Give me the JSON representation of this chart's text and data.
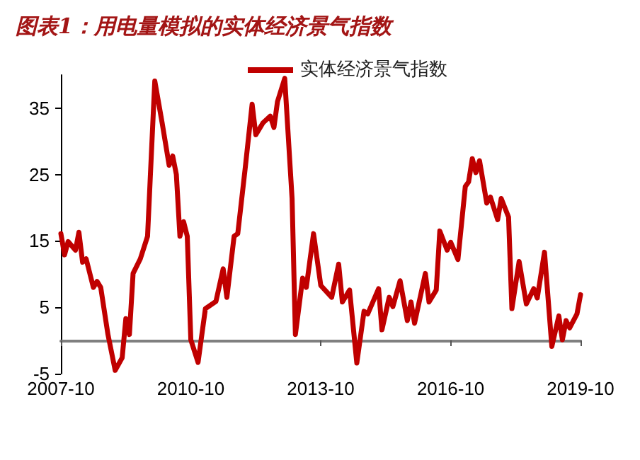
{
  "chart_data": {
    "type": "line",
    "title": "图表1：用电量模拟的实体经济景气指数",
    "x": [
      "2007-10",
      "2007-11",
      "2007-12",
      "2008-02",
      "2008-03",
      "2008-04",
      "2008-05",
      "2008-07",
      "2008-08",
      "2008-09",
      "2008-11",
      "2009-01",
      "2009-03",
      "2009-04",
      "2009-05",
      "2009-06",
      "2009-08",
      "2009-10",
      "2009-12",
      "2010-02",
      "2010-04",
      "2010-05",
      "2010-06",
      "2010-07",
      "2010-08",
      "2010-09",
      "2010-10",
      "2010-12",
      "2011-02",
      "2011-05",
      "2011-07",
      "2011-08",
      "2011-10",
      "2011-11",
      "2012-01",
      "2012-03",
      "2012-04",
      "2012-06",
      "2012-08",
      "2012-09",
      "2012-10",
      "2012-12",
      "2013-02",
      "2013-03",
      "2013-05",
      "2013-06",
      "2013-08",
      "2013-10",
      "2014-01",
      "2014-03",
      "2014-04",
      "2014-06",
      "2014-08",
      "2014-10",
      "2014-11",
      "2015-02",
      "2015-03",
      "2015-05",
      "2015-06",
      "2015-08",
      "2015-10",
      "2015-11",
      "2015-12",
      "2016-03",
      "2016-04",
      "2016-06",
      "2016-07",
      "2016-09",
      "2016-10",
      "2016-12",
      "2017-02",
      "2017-03",
      "2017-04",
      "2017-05",
      "2017-06",
      "2017-08",
      "2017-09",
      "2017-11",
      "2017-12",
      "2018-02",
      "2018-03",
      "2018-05",
      "2018-07",
      "2018-09",
      "2018-10",
      "2018-12",
      "2019-02",
      "2019-04",
      "2019-05",
      "2019-06",
      "2019-07",
      "2019-09",
      "2019-10"
    ],
    "series": [
      {
        "name": "实体经济景气指数",
        "color": "#c00000",
        "values": [
          16.1,
          12.9,
          14.9,
          13.6,
          16.3,
          11.8,
          12.3,
          8.0,
          8.9,
          8.0,
          0.9,
          -4.5,
          -2.6,
          3.3,
          0.9,
          10.1,
          12.3,
          15.7,
          39.1,
          32.8,
          26.4,
          27.8,
          25.0,
          15.7,
          17.9,
          15.7,
          0.1,
          -3.3,
          4.8,
          5.9,
          10.8,
          6.5,
          15.7,
          16.1,
          25.7,
          35.6,
          31.0,
          32.8,
          33.8,
          32.1,
          36.0,
          39.5,
          21.4,
          0.9,
          9.4,
          8.0,
          16.1,
          8.3,
          6.5,
          11.5,
          5.8,
          7.6,
          -3.4,
          4.4,
          4.0,
          7.8,
          1.6,
          6.5,
          5.1,
          9.0,
          3.0,
          5.8,
          2.6,
          10.1,
          5.8,
          7.6,
          16.5,
          13.6,
          14.8,
          12.2,
          23.2,
          23.9,
          27.4,
          25.3,
          27.1,
          20.7,
          21.6,
          18.2,
          21.4,
          18.6,
          4.8,
          11.9,
          5.5,
          7.8,
          6.4,
          13.3,
          -0.9,
          3.7,
          0.1,
          3.0,
          1.9,
          4.0,
          6.9
        ]
      }
    ],
    "xlim": [
      "2007-10",
      "2019-10"
    ],
    "xticks": [
      "2007-10",
      "2010-10",
      "2013-10",
      "2016-10",
      "2019-10"
    ],
    "ylim": [
      -5,
      40
    ],
    "yticks": [
      -5,
      5,
      15,
      25,
      35
    ],
    "grid": false,
    "legend": "top",
    "marker": "none",
    "line_style": "solid"
  }
}
